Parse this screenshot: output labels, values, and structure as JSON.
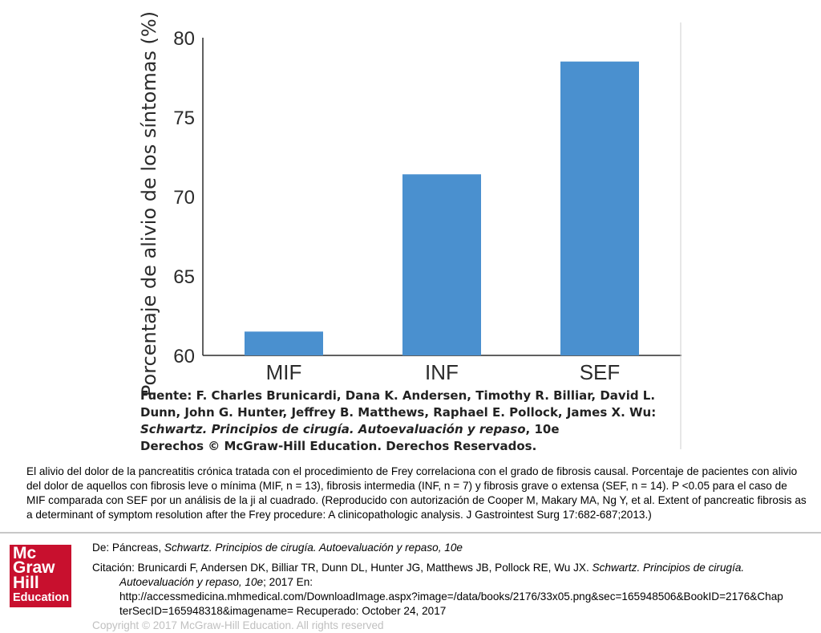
{
  "chart_data": {
    "type": "bar",
    "categories": [
      "MIF",
      "INF",
      "SEF"
    ],
    "values": [
      61.5,
      71.4,
      78.5
    ],
    "ylabel": "Porcentaje de alivio de los síntomas (%)",
    "yticks": [
      "60",
      "65",
      "70",
      "75",
      "80"
    ],
    "ylim": [
      60,
      80
    ],
    "bar_color": "#4a90cf",
    "grid": false
  },
  "source": {
    "line1": "Fuente: F. Charles Brunicardi, Dana K. Andersen, Timothy R. Billiar, David L.",
    "line2": "Dunn, John G. Hunter, Jeffrey B. Matthews, Raphael E. Pollock, James X. Wu:",
    "line3_italic": "Schwartz. Principios de cirugía. Autoevaluación y repaso",
    "line3_rest": ", 10e",
    "line4": "Derechos © McGraw-Hill Education. Derechos Reservados."
  },
  "caption": "El alivio del dolor de la pancreatitis crónica tratada con el procedimiento de Frey correlaciona con el grado de fibrosis causal. Porcentaje de pacientes con alivio del dolor de aquellos con fibrosis leve o mínima (MIF, n = 13), fibrosis intermedia (INF, n = 7) y fibrosis grave o extensa (SEF, n = 14). P <0.05 para el caso de MIF comparada con SEF por un análisis de la ji al cuadrado. (Reproducido con autorización de Cooper M, Makary MA, Ng Y, et al. Extent of pancreatic fibrosis as a determinant of symptom resolution after the Frey procedure: A clinicopathologic analysis. J Gastrointest Surg 17:682-687;2013.)",
  "logo": {
    "l1": "Mc",
    "l2": "Graw",
    "l3": "Hill",
    "l4": "Education"
  },
  "citation": {
    "de_prefix": "De: Páncreas, ",
    "de_italic": "Schwartz. Principios de cirugía. Autoevaluación y repaso, 10e",
    "cit_prefix": "Citación: Brunicardi F, Andersen DK, Billiar TR, Dunn DL, Hunter JG, Matthews JB, Pollock RE, Wu JX. ",
    "cit_italic": "Schwartz. Principios de cirugía.",
    "cit_italic2": "Autoevaluación y repaso, 10e",
    "cit_year": "; 2017 En:",
    "url1": "http://accessmedicina.mhmedical.com/DownloadImage.aspx?image=/data/books/2176/33x05.png&sec=165948506&BookID=2176&Chap",
    "url2": "terSecID=165948318&imagename= Recuperado: October 24, 2017",
    "copyright": "Copyright © 2017 McGraw-Hill Education. All rights reserved"
  }
}
